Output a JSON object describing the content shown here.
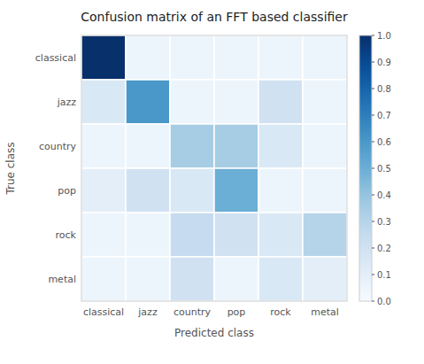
{
  "chart_data": {
    "type": "heatmap",
    "title": "Confusion matrix of an FFT based classifier",
    "xlabel": "Predicted class",
    "ylabel": "True class",
    "categories": [
      "classical",
      "jazz",
      "country",
      "pop",
      "rock",
      "metal"
    ],
    "values": [
      [
        1.0,
        0.05,
        0.05,
        0.05,
        0.05,
        0.05
      ],
      [
        0.15,
        0.6,
        0.05,
        0.05,
        0.2,
        0.05
      ],
      [
        0.05,
        0.05,
        0.35,
        0.35,
        0.15,
        0.05
      ],
      [
        0.1,
        0.2,
        0.15,
        0.5,
        0.05,
        0.05
      ],
      [
        0.05,
        0.05,
        0.25,
        0.2,
        0.15,
        0.3
      ],
      [
        0.05,
        0.05,
        0.2,
        0.05,
        0.15,
        0.1
      ]
    ],
    "color": "Blues",
    "colorbar_lim": [
      0.0,
      1.0
    ],
    "colorbar_ticks": [
      {
        "value": 0.0,
        "label": "0.0"
      },
      0.1,
      0.2,
      0.3,
      0.4,
      0.5,
      0.6,
      0.7,
      0.8,
      0.9,
      {
        "value": 1.0,
        "label": "1.0"
      }
    ]
  }
}
